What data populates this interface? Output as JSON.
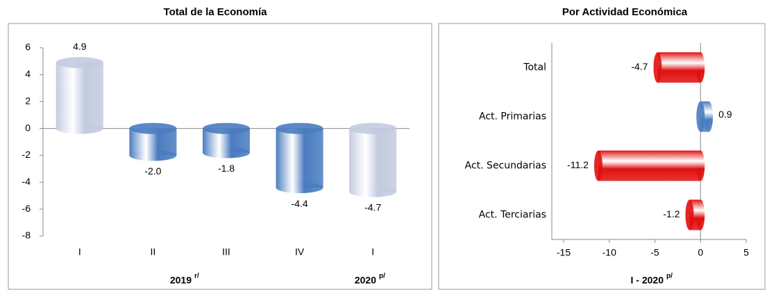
{
  "chart_data": [
    {
      "type": "bar",
      "orientation": "vertical",
      "title": "Total de la Economía",
      "categories": [
        "I",
        "II",
        "III",
        "IV",
        "I"
      ],
      "values": [
        4.9,
        -2.0,
        -1.8,
        -4.4,
        -4.7
      ],
      "value_labels": [
        "4.9",
        "-2.0",
        "-1.8",
        "-4.4",
        "-4.7"
      ],
      "colors": [
        "#c3cbe0",
        "#4a7cc0",
        "#4a7cc0",
        "#4a7cc0",
        "#c3cbe0"
      ],
      "ylim": [
        -8,
        6
      ],
      "yticks": [
        -8,
        -6,
        -4,
        -2,
        0,
        2,
        4,
        6
      ],
      "x_groups": [
        {
          "label": "2019",
          "note": "r/"
        },
        {
          "label": "2020",
          "note": "p/"
        }
      ]
    },
    {
      "type": "bar",
      "orientation": "horizontal",
      "title": "Por Actividad Económica",
      "categories": [
        "Total",
        "Act. Primarias",
        "Act. Secundarias",
        "Act. Terciarias"
      ],
      "values": [
        -4.7,
        0.9,
        -11.2,
        -1.2
      ],
      "value_labels": [
        "-4.7",
        "0.9",
        "-11.2",
        "-1.2"
      ],
      "colors": [
        "#e01010",
        "#4a7cc0",
        "#e01010",
        "#e01010"
      ],
      "xlim": [
        -15,
        5
      ],
      "xticks": [
        -15,
        -10,
        -5,
        0,
        5
      ],
      "xlabel": "I - 2020",
      "xlabel_note": "p/"
    }
  ]
}
